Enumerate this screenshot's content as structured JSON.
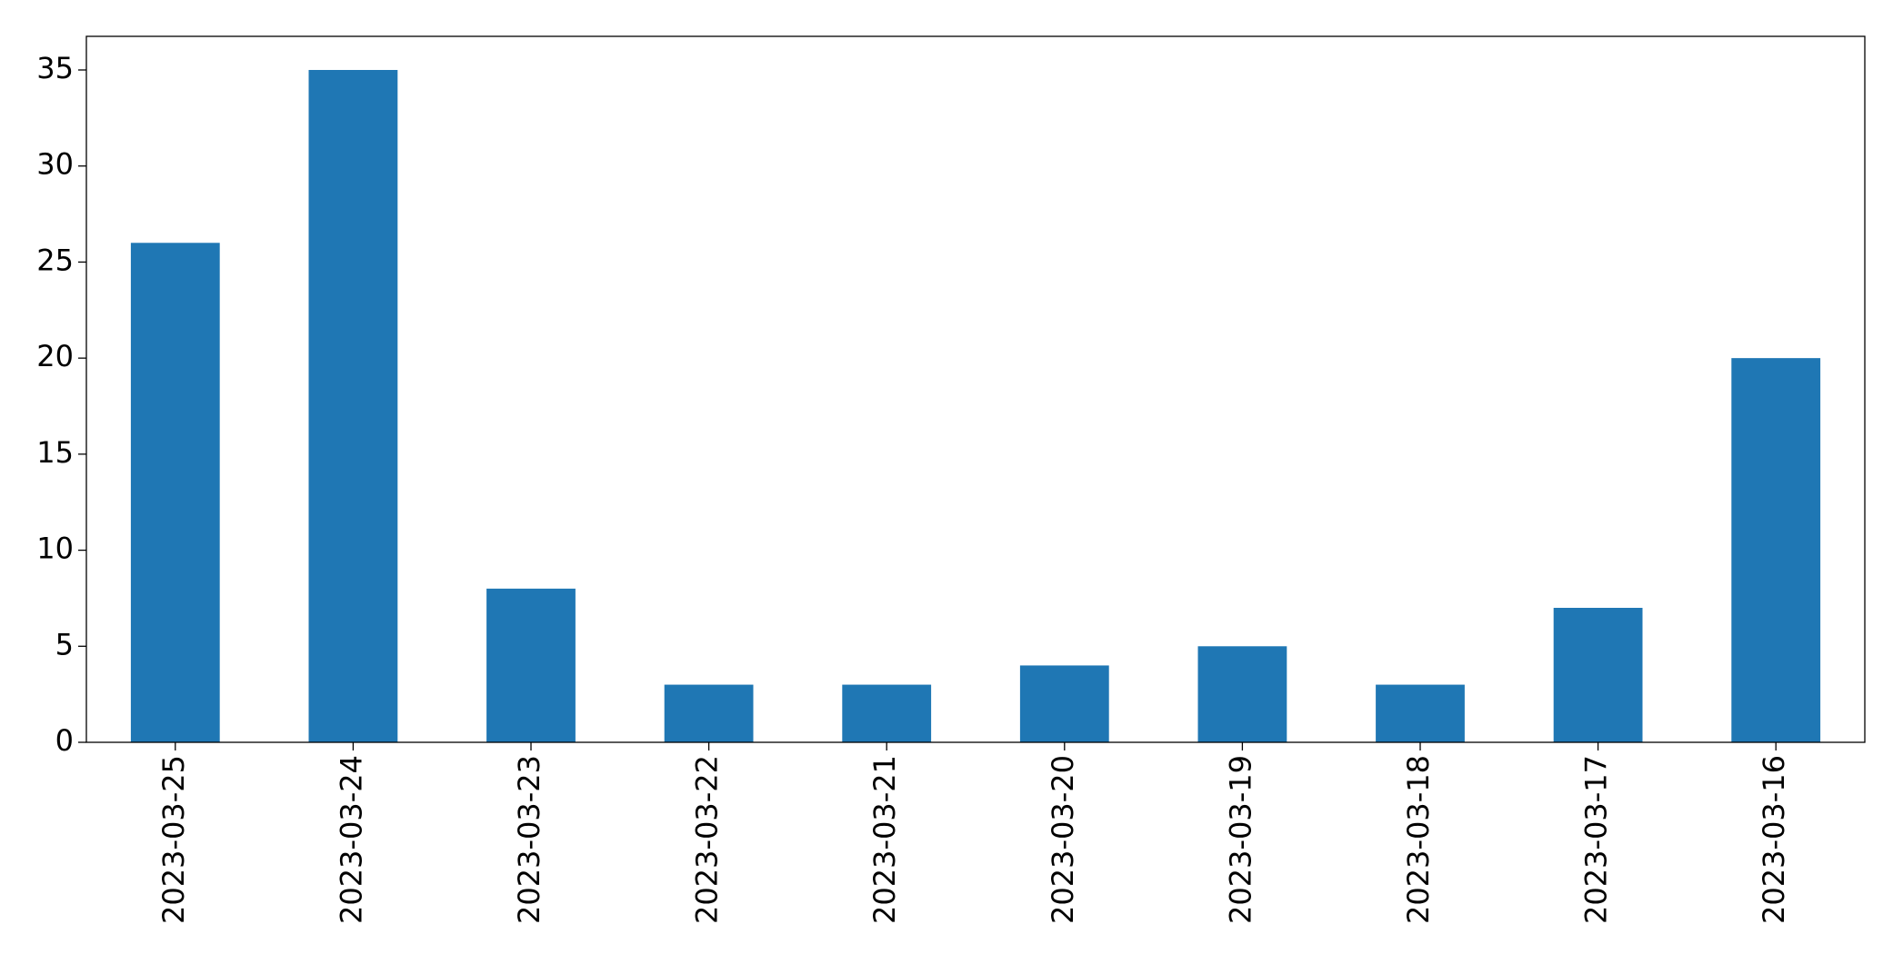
{
  "chart_data": {
    "type": "bar",
    "categories": [
      "2023-03-25",
      "2023-03-24",
      "2023-03-23",
      "2023-03-22",
      "2023-03-21",
      "2023-03-20",
      "2023-03-19",
      "2023-03-18",
      "2023-03-17",
      "2023-03-16"
    ],
    "values": [
      26,
      35,
      8,
      3,
      3,
      4,
      5,
      3,
      7,
      20
    ],
    "color": "#1f77b4",
    "ylim": [
      0,
      36.75
    ],
    "yticks": [
      0,
      5,
      10,
      15,
      20,
      25,
      30,
      35
    ],
    "grid": false
  }
}
